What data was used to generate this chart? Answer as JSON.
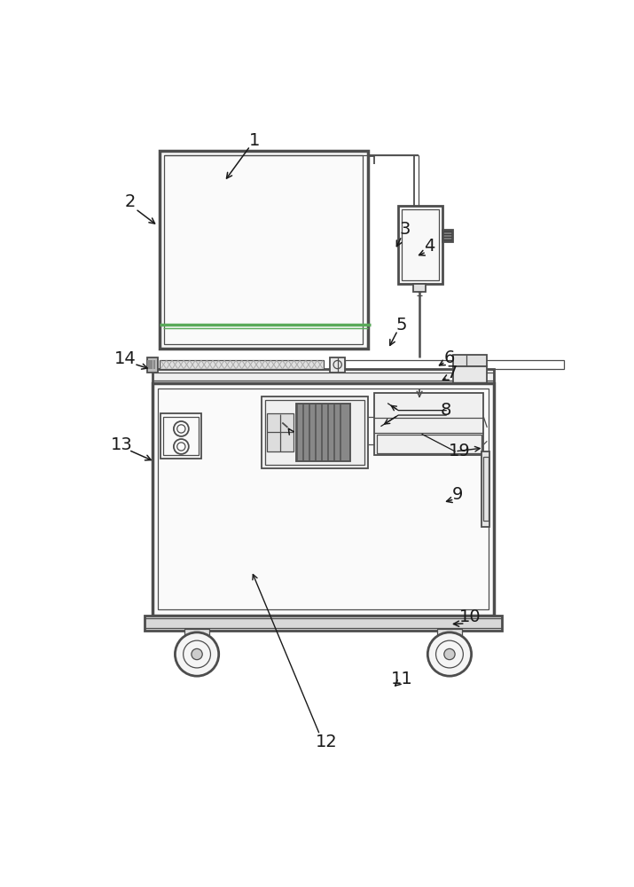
{
  "bg_color": "#ffffff",
  "line_color": "#4d4d4d",
  "lw_main": 2.0,
  "lw_thin": 0.9,
  "lw_med": 1.3,
  "label_color": "#1a1a1a",
  "label_fontsize": 14,
  "green_color": "#5aaa5a"
}
